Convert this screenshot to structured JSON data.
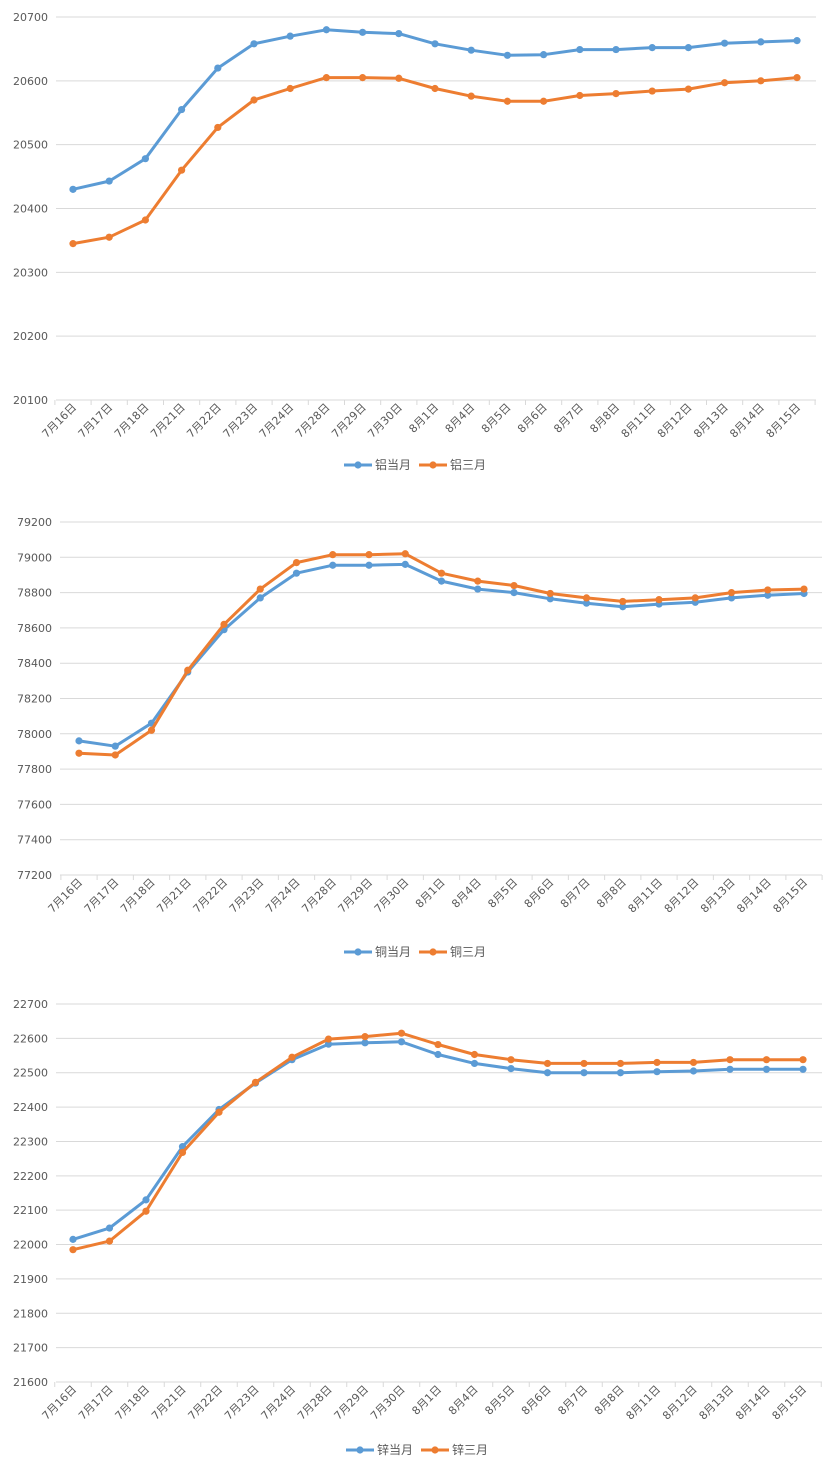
{
  "chart_data": [
    {
      "type": "line",
      "categories": [
        "7月16日",
        "7月17日",
        "7月18日",
        "7月21日",
        "7月22日",
        "7月23日",
        "7月24日",
        "7月28日",
        "7月29日",
        "7月30日",
        "8月1日",
        "8月4日",
        "8月5日",
        "8月6日",
        "8月7日",
        "8月8日",
        "8月11日",
        "8月12日",
        "8月13日",
        "8月14日",
        "8月15日"
      ],
      "series": [
        {
          "name": "铝当月",
          "color": "#5b9bd5",
          "values": [
            20430,
            20443,
            20478,
            20555,
            20620,
            20658,
            20670,
            20680,
            20676,
            20674,
            20658,
            20648,
            20640,
            20641,
            20649,
            20649,
            20652,
            20652,
            20659,
            20661,
            20663
          ]
        },
        {
          "name": "铝三月",
          "color": "#ed7d31",
          "values": [
            20345,
            20355,
            20382,
            20460,
            20527,
            20570,
            20588,
            20605,
            20605,
            20604,
            20588,
            20576,
            20568,
            20568,
            20577,
            20580,
            20584,
            20587,
            20597,
            20600,
            20605
          ]
        }
      ],
      "ylim": [
        20100,
        20700
      ],
      "yticks": [
        20100,
        20200,
        20300,
        20400,
        20500,
        20600,
        20700
      ],
      "grid": true,
      "legend": "bottom"
    },
    {
      "type": "line",
      "categories": [
        "7月16日",
        "7月17日",
        "7月18日",
        "7月21日",
        "7月22日",
        "7月23日",
        "7月24日",
        "7月28日",
        "7月29日",
        "7月30日",
        "8月1日",
        "8月4日",
        "8月5日",
        "8月6日",
        "8月7日",
        "8月8日",
        "8月11日",
        "8月12日",
        "8月13日",
        "8月14日",
        "8月15日"
      ],
      "series": [
        {
          "name": "铜当月",
          "color": "#5b9bd5",
          "values": [
            77960,
            77930,
            78060,
            78350,
            78590,
            78770,
            78910,
            78955,
            78955,
            78960,
            78865,
            78820,
            78800,
            78765,
            78740,
            78720,
            78735,
            78745,
            78770,
            78785,
            78795
          ]
        },
        {
          "name": "铜三月",
          "color": "#ed7d31",
          "values": [
            77890,
            77880,
            78020,
            78360,
            78620,
            78820,
            78970,
            79015,
            79015,
            79020,
            78910,
            78865,
            78840,
            78795,
            78770,
            78750,
            78760,
            78770,
            78800,
            78815,
            78820
          ]
        }
      ],
      "ylim": [
        77200,
        79200
      ],
      "yticks": [
        77200,
        77400,
        77600,
        77800,
        78000,
        78200,
        78400,
        78600,
        78800,
        79000,
        79200
      ],
      "grid": true,
      "legend": "bottom"
    },
    {
      "type": "line",
      "categories": [
        "7月16日",
        "7月17日",
        "7月18日",
        "7月21日",
        "7月22日",
        "7月23日",
        "7月24日",
        "7月28日",
        "7月29日",
        "7月30日",
        "8月1日",
        "8月4日",
        "8月5日",
        "8月6日",
        "8月7日",
        "8月8日",
        "8月11日",
        "8月12日",
        "8月13日",
        "8月14日",
        "8月15日"
      ],
      "series": [
        {
          "name": "锌当月",
          "color": "#5b9bd5",
          "values": [
            22015,
            22048,
            22130,
            22285,
            22393,
            22470,
            22538,
            22583,
            22587,
            22590,
            22553,
            22527,
            22512,
            22500,
            22500,
            22500,
            22503,
            22505,
            22510,
            22510,
            22510
          ]
        },
        {
          "name": "锌三月",
          "color": "#ed7d31",
          "values": [
            21985,
            22010,
            22097,
            22268,
            22385,
            22472,
            22545,
            22598,
            22605,
            22615,
            22582,
            22553,
            22538,
            22527,
            22527,
            22527,
            22530,
            22530,
            22538,
            22538,
            22538
          ]
        }
      ],
      "ylim": [
        21600,
        22700
      ],
      "yticks": [
        21600,
        21700,
        21800,
        21900,
        22000,
        22100,
        22200,
        22300,
        22400,
        22500,
        22600,
        22700
      ],
      "grid": true,
      "legend": "bottom"
    }
  ]
}
